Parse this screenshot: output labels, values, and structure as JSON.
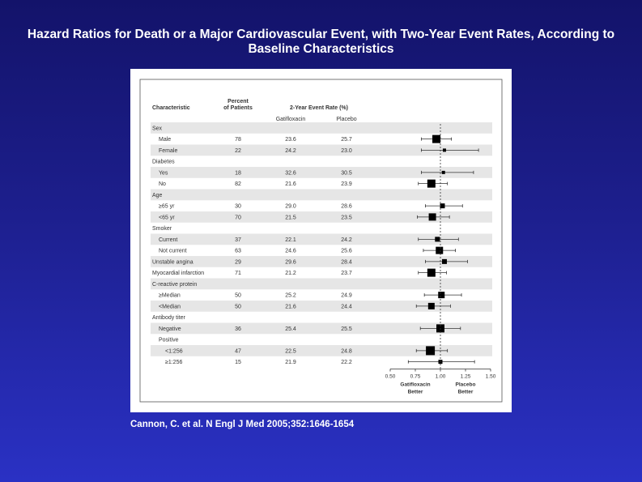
{
  "slide": {
    "title": "Hazard Ratios for Death or a Major Cardiovascular Event, with Two-Year Event Rates, According to Baseline Characteristics",
    "citation": "Cannon, C. et al. N Engl J Med 2005;352:1646-1654"
  },
  "table": {
    "headers": {
      "characteristic": "Characteristic",
      "percent_line1": "Percent",
      "percent_line2": "of Patients",
      "event_rate": "2-Year Event Rate (%)",
      "gatifloxacin": "Gatifloxacin",
      "placebo": "Placebo"
    }
  },
  "chart_data": {
    "type": "forest",
    "xlim": [
      0.5,
      1.5
    ],
    "xticks": [
      "0.50",
      "0.75",
      "1.00",
      "1.25",
      "1.50"
    ],
    "reference_line": 1.0,
    "x_left_label": [
      "Gatifloxacin",
      "Better"
    ],
    "x_right_label": [
      "Placebo",
      "Better"
    ],
    "rows": [
      {
        "label": "Sex",
        "indent": 0,
        "header": true
      },
      {
        "label": "Male",
        "indent": 1,
        "pct": "78",
        "gati": "23.6",
        "plac": "25.7",
        "hr": 0.96,
        "lo": 0.81,
        "hi": 1.11,
        "size": 10
      },
      {
        "label": "Female",
        "indent": 1,
        "pct": "22",
        "gati": "24.2",
        "plac": "23.0",
        "hr": 1.04,
        "lo": 0.81,
        "hi": 1.38,
        "size": 4
      },
      {
        "label": "Diabetes",
        "indent": 0,
        "header": true
      },
      {
        "label": "Yes",
        "indent": 1,
        "pct": "18",
        "gati": "32.6",
        "plac": "30.5",
        "hr": 1.03,
        "lo": 0.81,
        "hi": 1.33,
        "size": 4
      },
      {
        "label": "No",
        "indent": 1,
        "pct": "82",
        "gati": "21.6",
        "plac": "23.9",
        "hr": 0.91,
        "lo": 0.78,
        "hi": 1.07,
        "size": 10
      },
      {
        "label": "Age",
        "indent": 0,
        "header": true
      },
      {
        "label": "≥65 yr",
        "indent": 1,
        "pct": "30",
        "gati": "29.0",
        "plac": "28.6",
        "hr": 1.02,
        "lo": 0.85,
        "hi": 1.22,
        "size": 6
      },
      {
        "label": "<65 yr",
        "indent": 1,
        "pct": "70",
        "gati": "21.5",
        "plac": "23.5",
        "hr": 0.92,
        "lo": 0.77,
        "hi": 1.09,
        "size": 9
      },
      {
        "label": "Smoker",
        "indent": 0,
        "header": true
      },
      {
        "label": "Current",
        "indent": 1,
        "pct": "37",
        "gati": "22.1",
        "plac": "24.2",
        "hr": 0.97,
        "lo": 0.78,
        "hi": 1.18,
        "size": 6
      },
      {
        "label": "Not current",
        "indent": 1,
        "pct": "63",
        "gati": "24.6",
        "plac": "25.6",
        "hr": 0.99,
        "lo": 0.83,
        "hi": 1.15,
        "size": 9
      },
      {
        "label": "Unstable angina",
        "indent": 0,
        "pct": "29",
        "gati": "29.6",
        "plac": "28.4",
        "hr": 1.04,
        "lo": 0.85,
        "hi": 1.27,
        "size": 6
      },
      {
        "label": "Myocardial infarction",
        "indent": 0,
        "pct": "71",
        "gati": "21.2",
        "plac": "23.7",
        "hr": 0.91,
        "lo": 0.78,
        "hi": 1.06,
        "size": 10
      },
      {
        "label": "C-reactive protein",
        "indent": 0,
        "header": true
      },
      {
        "label": "≥Median",
        "indent": 1,
        "pct": "50",
        "gati": "25.2",
        "plac": "24.9",
        "hr": 1.01,
        "lo": 0.84,
        "hi": 1.21,
        "size": 8
      },
      {
        "label": "<Median",
        "indent": 1,
        "pct": "50",
        "gati": "21.6",
        "plac": "24.4",
        "hr": 0.91,
        "lo": 0.76,
        "hi": 1.1,
        "size": 8
      },
      {
        "label": "Antibody titer",
        "indent": 0,
        "header": true
      },
      {
        "label": "Negative",
        "indent": 1,
        "pct": "36",
        "gati": "25.4",
        "plac": "25.5",
        "hr": 1.0,
        "lo": 0.8,
        "hi": 1.2,
        "size": 10
      },
      {
        "label": "Positive",
        "indent": 1,
        "header": true
      },
      {
        "label": "<1:256",
        "indent": 2,
        "pct": "47",
        "gati": "22.5",
        "plac": "24.8",
        "hr": 0.9,
        "lo": 0.76,
        "hi": 1.07,
        "size": 11
      },
      {
        "label": "≥1:256",
        "indent": 2,
        "pct": "15",
        "gati": "21.9",
        "plac": "22.2",
        "hr": 1.0,
        "lo": 0.68,
        "hi": 1.34,
        "size": 5
      }
    ]
  }
}
